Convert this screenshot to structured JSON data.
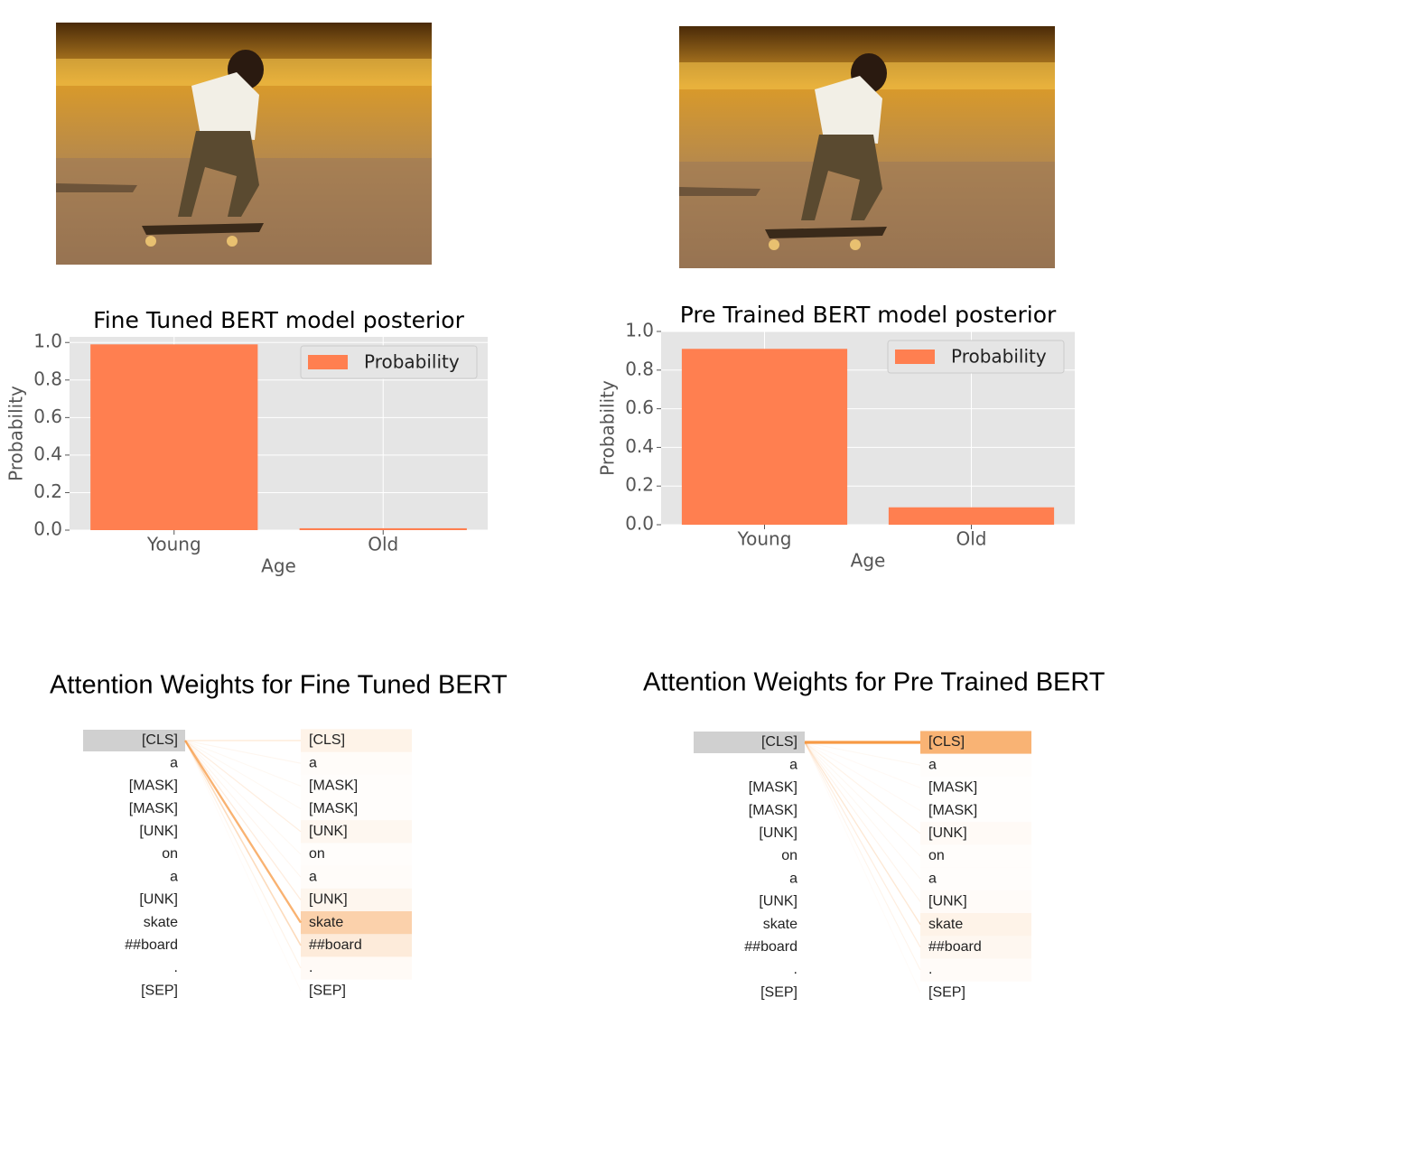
{
  "chart_data": [
    {
      "type": "bar",
      "title": "Fine Tuned BERT model posterior",
      "xlabel": "Age",
      "ylabel": "Probability",
      "categories": [
        "Young",
        "Old"
      ],
      "series": [
        {
          "name": "Probability",
          "color": "#ff7f50",
          "values": [
            0.99,
            0.01
          ]
        }
      ],
      "ylim": [
        0,
        1.03
      ],
      "yticks": [
        {
          "value": 0,
          "label": "0.0"
        },
        {
          "value": 0.2,
          "label": "0.2"
        },
        {
          "value": 0.4,
          "label": "0.4"
        },
        {
          "value": 0.6,
          "label": "0.6"
        },
        {
          "value": 0.8,
          "label": "0.8"
        },
        {
          "value": 1,
          "label": "1.0"
        }
      ],
      "grid": true,
      "legend": "upper right"
    },
    {
      "type": "bar",
      "title": "Pre Trained BERT model posterior",
      "xlabel": "Age",
      "ylabel": "Probability",
      "categories": [
        "Young",
        "Old"
      ],
      "series": [
        {
          "name": "Probability",
          "color": "#ff7f50",
          "values": [
            0.91,
            0.09
          ]
        }
      ],
      "ylim": [
        0,
        1.0
      ],
      "yticks": [
        {
          "value": 0,
          "label": "0.0"
        },
        {
          "value": 0.2,
          "label": "0.2"
        },
        {
          "value": 0.4,
          "label": "0.4"
        },
        {
          "value": 0.6,
          "label": "0.6"
        },
        {
          "value": 0.8,
          "label": "0.8"
        },
        {
          "value": 1,
          "label": "1.0"
        }
      ],
      "grid": true,
      "legend": "upper right"
    },
    {
      "type": "attention",
      "title": "Attention Weights for Fine Tuned BERT",
      "color": "#f79a45",
      "tokens": [
        "[CLS]",
        "a",
        "[MASK]",
        "[MASK]",
        "[UNK]",
        "on",
        "a",
        "[UNK]",
        "skate",
        "##board",
        ".",
        "[SEP]"
      ],
      "weights": [
        0.12,
        0.03,
        0.02,
        0.02,
        0.08,
        0.02,
        0.03,
        0.09,
        0.45,
        0.2,
        0.05,
        0
      ]
    },
    {
      "type": "attention",
      "title": "Attention Weights for Pre Trained BERT",
      "color": "#f79a45",
      "tokens": [
        "[CLS]",
        "a",
        "[MASK]",
        "[MASK]",
        "[UNK]",
        "on",
        "a",
        "[UNK]",
        "skate",
        "##board",
        ".",
        "[SEP]"
      ],
      "weights": [
        0.75,
        0.02,
        0.01,
        0.01,
        0.05,
        0.02,
        0.02,
        0.04,
        0.12,
        0.08,
        0.04,
        0
      ]
    }
  ]
}
